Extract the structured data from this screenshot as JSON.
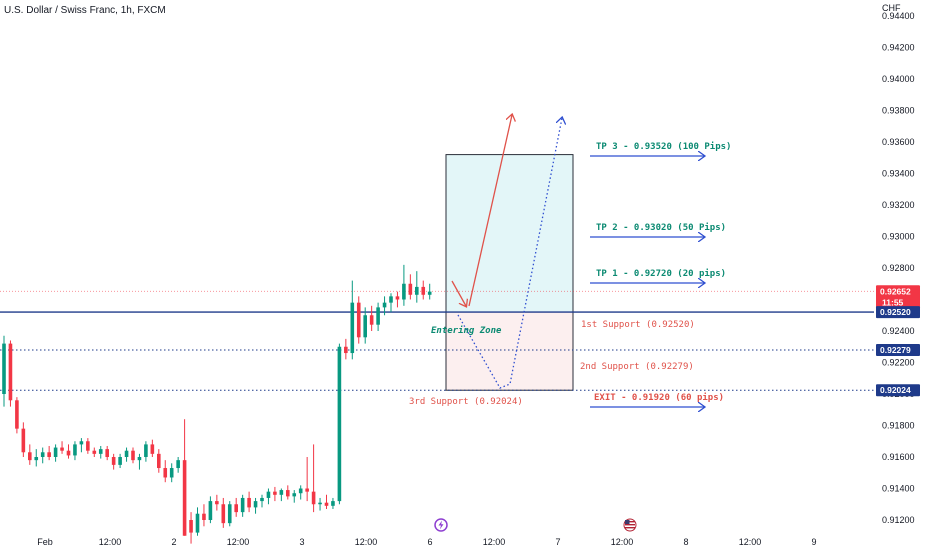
{
  "chart_data": {
    "type": "candlestick",
    "title": "U.S. Dollar / Swiss Franc, 1h, FXCM",
    "currency": "CHF",
    "ylim": [
      0.911,
      0.9445
    ],
    "y_ticks": [
      "0.94400",
      "0.94200",
      "0.94000",
      "0.93800",
      "0.93600",
      "0.93400",
      "0.93200",
      "0.93000",
      "0.92800",
      "0.92600",
      "0.92400",
      "0.92200",
      "0.92000",
      "0.91800",
      "0.91600",
      "0.91400",
      "0.91200"
    ],
    "x_ticks": [
      "Feb",
      "12:00",
      "2",
      "12:00",
      "3",
      "12:00",
      "6",
      "12:00",
      "7",
      "12:00",
      "8",
      "12:00",
      "9"
    ],
    "grid": false,
    "colors": {
      "up": "#089981",
      "down": "#f23645",
      "level": "#1e3a8a",
      "tp": "#0b8a72",
      "support": "#e0524a",
      "long_zone": "#e3f6f8",
      "short_zone": "#fcefef",
      "current_price": "#f23645"
    },
    "current_price": {
      "value": "0.92652",
      "countdown": "11:55"
    },
    "levels": [
      {
        "price": 0.9252,
        "label": "0.92520",
        "style": "solid"
      },
      {
        "price": 0.92279,
        "label": "0.92279",
        "style": "dotted"
      },
      {
        "price": 0.92024,
        "label": "0.92024",
        "style": "dotted"
      }
    ],
    "position_box": {
      "top": 0.9352,
      "entry": 0.9252,
      "bottom": 0.92024
    },
    "annotations": {
      "tp3": "TP 3 - 0.93520 (100 Pips)",
      "tp2": "TP 2 - 0.93020 (50 Pips)",
      "tp1": "TP 1 - 0.92720 (20 pips)",
      "exit": "EXIT - 0.91920 (60 pips)",
      "support1": "1st Support (0.92520)",
      "support2": "2nd Support (0.92279)",
      "support3": "3rd Support (0.92024)",
      "entering_zone": "Entering Zone"
    },
    "candles": [
      {
        "o": 0.92,
        "h": 0.9237,
        "l": 0.9192,
        "c": 0.9232
      },
      {
        "o": 0.9232,
        "h": 0.9234,
        "l": 0.9192,
        "c": 0.9196
      },
      {
        "o": 0.9196,
        "h": 0.9198,
        "l": 0.9175,
        "c": 0.9178
      },
      {
        "o": 0.9178,
        "h": 0.9182,
        "l": 0.916,
        "c": 0.9163
      },
      {
        "o": 0.9163,
        "h": 0.9168,
        "l": 0.9155,
        "c": 0.9158
      },
      {
        "o": 0.9158,
        "h": 0.9165,
        "l": 0.9154,
        "c": 0.916
      },
      {
        "o": 0.916,
        "h": 0.9166,
        "l": 0.9156,
        "c": 0.9163
      },
      {
        "o": 0.9163,
        "h": 0.9167,
        "l": 0.9158,
        "c": 0.916
      },
      {
        "o": 0.916,
        "h": 0.9168,
        "l": 0.9157,
        "c": 0.9166
      },
      {
        "o": 0.9166,
        "h": 0.917,
        "l": 0.9162,
        "c": 0.9164
      },
      {
        "o": 0.9164,
        "h": 0.9168,
        "l": 0.9159,
        "c": 0.9161
      },
      {
        "o": 0.9161,
        "h": 0.917,
        "l": 0.9158,
        "c": 0.9168
      },
      {
        "o": 0.9168,
        "h": 0.9172,
        "l": 0.9163,
        "c": 0.917
      },
      {
        "o": 0.917,
        "h": 0.9172,
        "l": 0.9162,
        "c": 0.9164
      },
      {
        "o": 0.9164,
        "h": 0.9166,
        "l": 0.916,
        "c": 0.9162
      },
      {
        "o": 0.9162,
        "h": 0.9167,
        "l": 0.9159,
        "c": 0.9165
      },
      {
        "o": 0.9165,
        "h": 0.9167,
        "l": 0.9158,
        "c": 0.916
      },
      {
        "o": 0.916,
        "h": 0.9162,
        "l": 0.9152,
        "c": 0.9155
      },
      {
        "o": 0.9155,
        "h": 0.9162,
        "l": 0.9153,
        "c": 0.916
      },
      {
        "o": 0.916,
        "h": 0.9166,
        "l": 0.9157,
        "c": 0.9164
      },
      {
        "o": 0.9164,
        "h": 0.9166,
        "l": 0.9156,
        "c": 0.9158
      },
      {
        "o": 0.9158,
        "h": 0.9162,
        "l": 0.9152,
        "c": 0.916
      },
      {
        "o": 0.916,
        "h": 0.917,
        "l": 0.9157,
        "c": 0.9168
      },
      {
        "o": 0.9168,
        "h": 0.9171,
        "l": 0.916,
        "c": 0.9162
      },
      {
        "o": 0.9162,
        "h": 0.9165,
        "l": 0.915,
        "c": 0.9153
      },
      {
        "o": 0.9153,
        "h": 0.9158,
        "l": 0.9144,
        "c": 0.9147
      },
      {
        "o": 0.9147,
        "h": 0.9156,
        "l": 0.9144,
        "c": 0.9153
      },
      {
        "o": 0.9153,
        "h": 0.916,
        "l": 0.915,
        "c": 0.9158
      },
      {
        "o": 0.9158,
        "h": 0.9184,
        "l": 0.911,
        "c": 0.911
      },
      {
        "o": 0.912,
        "h": 0.9125,
        "l": 0.9105,
        "c": 0.9112
      },
      {
        "o": 0.9112,
        "h": 0.9128,
        "l": 0.911,
        "c": 0.9124
      },
      {
        "o": 0.9124,
        "h": 0.913,
        "l": 0.9116,
        "c": 0.912
      },
      {
        "o": 0.912,
        "h": 0.9135,
        "l": 0.9118,
        "c": 0.9132
      },
      {
        "o": 0.9132,
        "h": 0.9136,
        "l": 0.9126,
        "c": 0.913
      },
      {
        "o": 0.913,
        "h": 0.9134,
        "l": 0.9115,
        "c": 0.9118
      },
      {
        "o": 0.9118,
        "h": 0.9132,
        "l": 0.9116,
        "c": 0.913
      },
      {
        "o": 0.913,
        "h": 0.9134,
        "l": 0.9122,
        "c": 0.9125
      },
      {
        "o": 0.9125,
        "h": 0.9136,
        "l": 0.9122,
        "c": 0.9134
      },
      {
        "o": 0.9134,
        "h": 0.9138,
        "l": 0.9125,
        "c": 0.9128
      },
      {
        "o": 0.9128,
        "h": 0.9134,
        "l": 0.9124,
        "c": 0.9132
      },
      {
        "o": 0.9132,
        "h": 0.9136,
        "l": 0.9128,
        "c": 0.9134
      },
      {
        "o": 0.9134,
        "h": 0.914,
        "l": 0.913,
        "c": 0.9138
      },
      {
        "o": 0.9138,
        "h": 0.9141,
        "l": 0.9132,
        "c": 0.9136
      },
      {
        "o": 0.9136,
        "h": 0.914,
        "l": 0.9132,
        "c": 0.9139
      },
      {
        "o": 0.9139,
        "h": 0.9142,
        "l": 0.9133,
        "c": 0.9135
      },
      {
        "o": 0.9135,
        "h": 0.9139,
        "l": 0.9131,
        "c": 0.9137
      },
      {
        "o": 0.9137,
        "h": 0.9142,
        "l": 0.9133,
        "c": 0.914
      },
      {
        "o": 0.914,
        "h": 0.916,
        "l": 0.9132,
        "c": 0.9138
      },
      {
        "o": 0.9138,
        "h": 0.9168,
        "l": 0.9125,
        "c": 0.913
      },
      {
        "o": 0.913,
        "h": 0.9134,
        "l": 0.9126,
        "c": 0.9131
      },
      {
        "o": 0.9131,
        "h": 0.9136,
        "l": 0.9127,
        "c": 0.9129
      },
      {
        "o": 0.9129,
        "h": 0.9134,
        "l": 0.9127,
        "c": 0.9132
      },
      {
        "o": 0.9132,
        "h": 0.9232,
        "l": 0.913,
        "c": 0.923
      },
      {
        "o": 0.923,
        "h": 0.9235,
        "l": 0.9222,
        "c": 0.9226
      },
      {
        "o": 0.9226,
        "h": 0.9272,
        "l": 0.9222,
        "c": 0.9258
      },
      {
        "o": 0.9258,
        "h": 0.9262,
        "l": 0.9232,
        "c": 0.9236
      },
      {
        "o": 0.9236,
        "h": 0.9255,
        "l": 0.9232,
        "c": 0.925
      },
      {
        "o": 0.925,
        "h": 0.9256,
        "l": 0.924,
        "c": 0.9244
      },
      {
        "o": 0.9244,
        "h": 0.9258,
        "l": 0.924,
        "c": 0.9255
      },
      {
        "o": 0.9255,
        "h": 0.9262,
        "l": 0.925,
        "c": 0.9258
      },
      {
        "o": 0.9258,
        "h": 0.9264,
        "l": 0.9252,
        "c": 0.9262
      },
      {
        "o": 0.9262,
        "h": 0.9265,
        "l": 0.9255,
        "c": 0.926
      },
      {
        "o": 0.926,
        "h": 0.9282,
        "l": 0.9256,
        "c": 0.927
      },
      {
        "o": 0.927,
        "h": 0.9276,
        "l": 0.926,
        "c": 0.9263
      },
      {
        "o": 0.9263,
        "h": 0.9278,
        "l": 0.9258,
        "c": 0.9268
      },
      {
        "o": 0.9268,
        "h": 0.9272,
        "l": 0.926,
        "c": 0.9263
      },
      {
        "o": 0.9263,
        "h": 0.927,
        "l": 0.926,
        "c": 0.9265
      }
    ]
  }
}
